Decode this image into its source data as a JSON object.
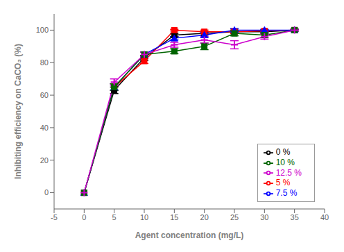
{
  "chart_data": {
    "type": "line",
    "xlabel": "Agent concentration (mg/L)",
    "ylabel": "Inhibiting efficiency on CaCO₃ (%)",
    "x": [
      0,
      5,
      10,
      15,
      20,
      25,
      30,
      35
    ],
    "series": [
      {
        "name": "0 %",
        "color": "#000000",
        "marker": "square",
        "values": [
          0,
          63,
          83,
          97,
          98,
          99,
          99,
          100
        ],
        "yerr": [
          0,
          2,
          1.5,
          1,
          1,
          1,
          1,
          0.5
        ]
      },
      {
        "name": "5 %",
        "color": "#ff0000",
        "marker": "square",
        "values": [
          0,
          65,
          81,
          100,
          99,
          99,
          99.5,
          100
        ],
        "yerr": [
          0,
          2,
          1.5,
          0.5,
          1,
          1,
          0.5,
          0.5
        ]
      },
      {
        "name": "7.5 %",
        "color": "#0000ff",
        "marker": "triangle",
        "values": [
          0,
          65,
          85,
          95,
          97,
          100,
          100,
          100
        ],
        "yerr": [
          0,
          2,
          1.5,
          1,
          1.5,
          1,
          0.5,
          0.5
        ]
      },
      {
        "name": "10 %",
        "color": "#006400",
        "marker": "square",
        "values": [
          0,
          65,
          85,
          87,
          90,
          98,
          97,
          100
        ],
        "yerr": [
          0,
          2,
          1.5,
          1.5,
          2,
          1.5,
          1.5,
          0.5
        ]
      },
      {
        "name": "12.5 %",
        "color": "#cc00cc",
        "marker": "plus",
        "values": [
          0,
          68,
          85,
          91,
          94,
          91,
          96,
          100
        ],
        "yerr": [
          0,
          2,
          1.5,
          1.5,
          2,
          2.5,
          1.5,
          0.5
        ]
      }
    ],
    "xlim": [
      -5,
      40
    ],
    "ylim": [
      -10,
      110
    ],
    "xticks": [
      -5,
      0,
      5,
      10,
      15,
      20,
      25,
      30,
      35,
      40
    ],
    "yticks": [
      0,
      20,
      40,
      60,
      80,
      100
    ],
    "legend": "lower right",
    "grid": false
  }
}
